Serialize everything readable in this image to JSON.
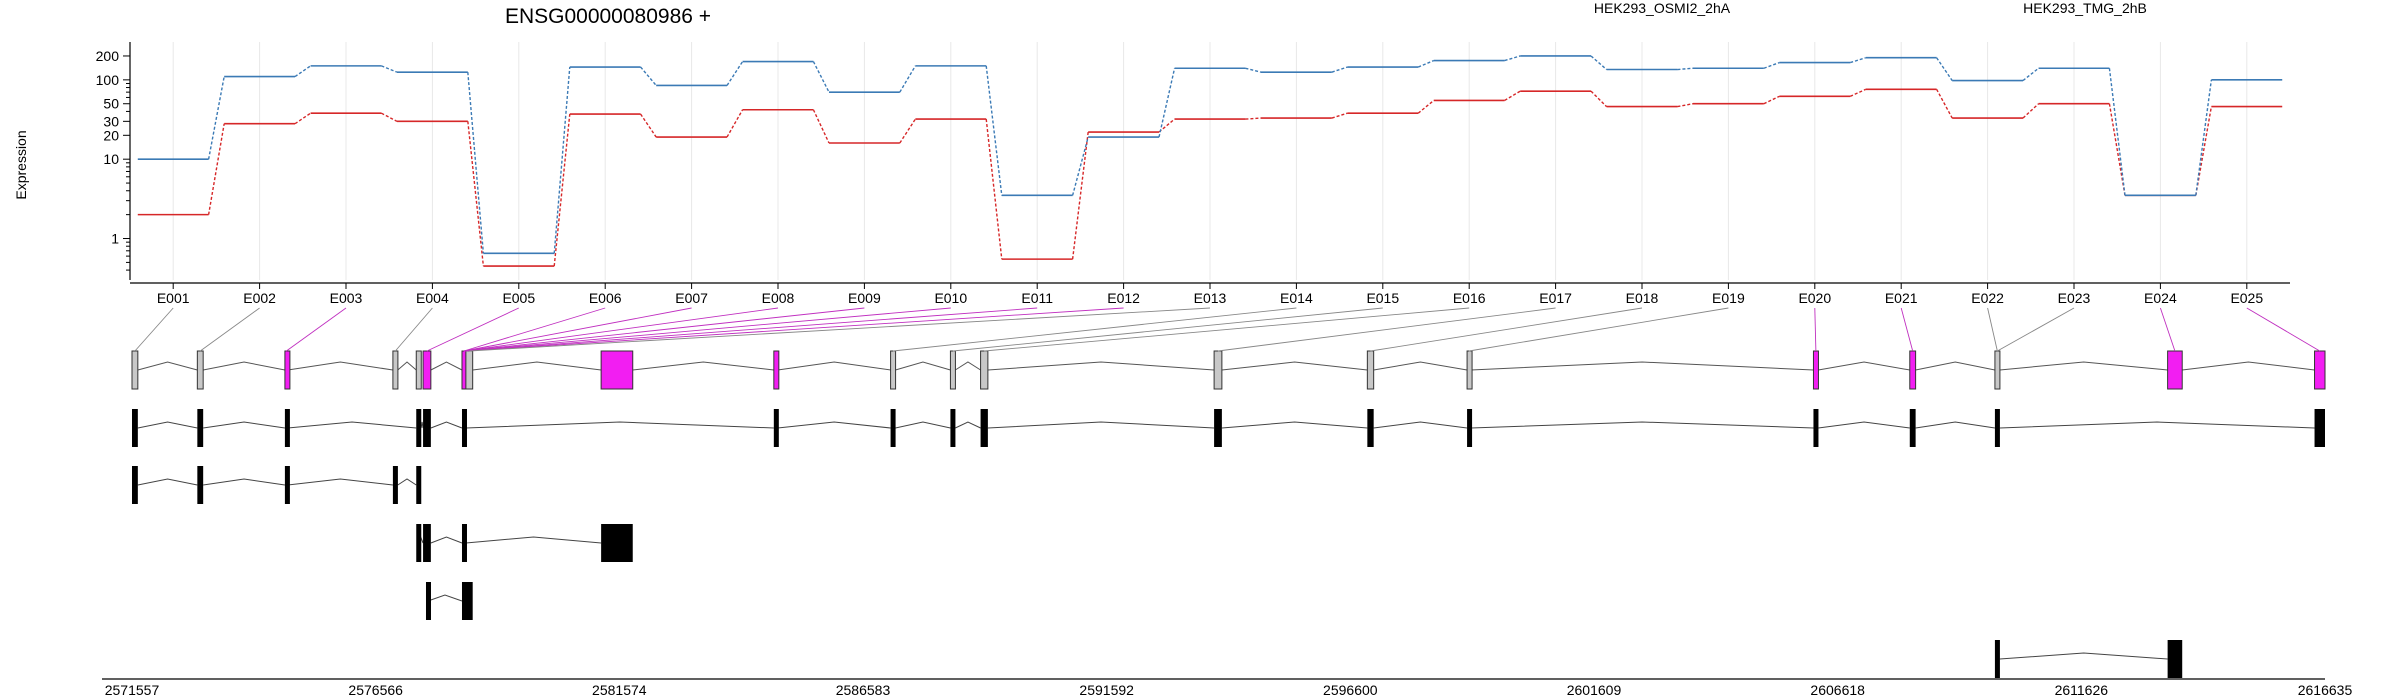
{
  "chart_data": {
    "type": "line",
    "title": "ENSG00000080986 +",
    "ylabel": "Expression",
    "xlabel": "",
    "yscale": "log",
    "ylim": [
      0.3,
      300
    ],
    "y_ticks": [
      1,
      10,
      20,
      30,
      50,
      100,
      200
    ],
    "grid": "vertical",
    "legend_position": "top",
    "categories": [
      "E001",
      "E002",
      "E003",
      "E004",
      "E005",
      "E006",
      "E007",
      "E008",
      "E009",
      "E010",
      "E011",
      "E012",
      "E013",
      "E014",
      "E015",
      "E016",
      "E017",
      "E018",
      "E019",
      "E020",
      "E021",
      "E022",
      "E023",
      "E024",
      "E025"
    ],
    "series": [
      {
        "name": "HEK293_OSMI2_2hA",
        "color": "#d62728",
        "values": [
          2,
          28,
          38,
          30,
          0.45,
          37,
          19,
          42,
          16,
          32,
          0.55,
          22,
          32,
          33,
          38,
          55,
          72,
          46,
          50,
          62,
          76,
          33,
          50,
          3.5,
          46
        ]
      },
      {
        "name": "HEK293_TMG_2hB",
        "color": "#3b7ab5",
        "values": [
          10,
          110,
          150,
          125,
          0.65,
          145,
          85,
          170,
          70,
          150,
          3.5,
          19,
          140,
          125,
          145,
          175,
          200,
          135,
          140,
          165,
          190,
          98,
          140,
          3.5,
          100
        ]
      }
    ],
    "genome_ticks": [
      "2571557",
      "2576566",
      "2581574",
      "2586583",
      "2591592",
      "2596600",
      "2601609",
      "2606618",
      "2611626",
      "2616635"
    ],
    "genome_range": [
      2571557,
      2616635
    ],
    "highlight_color": "#f21ef2",
    "exon_fill_color": "#c8c8c8",
    "transcript_color": "#000000",
    "exons": [
      {
        "start": 2571557,
        "end": 2571677,
        "highlight": false
      },
      {
        "start": 2572900,
        "end": 2573020,
        "highlight": false
      },
      {
        "start": 2574700,
        "end": 2574760,
        "highlight": true
      },
      {
        "start": 2576920,
        "end": 2577020,
        "highlight": false
      },
      {
        "start": 2577400,
        "end": 2577500,
        "highlight": false
      },
      {
        "start": 2577540,
        "end": 2577700,
        "highlight": true
      },
      {
        "start": 2578340,
        "end": 2578420,
        "highlight": true
      },
      {
        "start": 2578420,
        "end": 2578560,
        "highlight": false
      },
      {
        "start": 2581200,
        "end": 2581850,
        "highlight": true
      },
      {
        "start": 2584750,
        "end": 2584830,
        "highlight": true
      },
      {
        "start": 2587150,
        "end": 2587250,
        "highlight": false
      },
      {
        "start": 2588380,
        "end": 2588480,
        "highlight": false
      },
      {
        "start": 2589000,
        "end": 2589150,
        "highlight": false
      },
      {
        "start": 2593800,
        "end": 2593960,
        "highlight": false
      },
      {
        "start": 2596950,
        "end": 2597080,
        "highlight": false
      },
      {
        "start": 2599000,
        "end": 2599080,
        "highlight": false
      },
      {
        "start": 2606120,
        "end": 2606220,
        "highlight": true
      },
      {
        "start": 2608100,
        "end": 2608220,
        "highlight": true
      },
      {
        "start": 2609850,
        "end": 2609950,
        "highlight": false
      },
      {
        "start": 2613400,
        "end": 2613700,
        "highlight": true
      },
      {
        "start": 2616420,
        "end": 2616635,
        "highlight": true
      }
    ],
    "exon_bin_links": [
      0,
      1,
      2,
      3,
      5,
      6,
      6,
      6,
      6,
      6,
      6,
      6,
      7,
      10,
      11,
      12,
      13,
      14,
      15,
      16,
      17,
      18,
      18,
      19,
      20
    ],
    "transcripts": [
      {
        "exons": [
          [
            2571557,
            2571677
          ],
          [
            2572900,
            2573020
          ],
          [
            2574700,
            2574760
          ],
          [
            2577400,
            2577500
          ],
          [
            2577540,
            2577700
          ],
          [
            2578340,
            2578420
          ],
          [
            2584750,
            2584830
          ],
          [
            2587150,
            2587250
          ],
          [
            2588380,
            2588480
          ],
          [
            2589000,
            2589150
          ],
          [
            2593800,
            2593960
          ],
          [
            2596950,
            2597080
          ],
          [
            2599000,
            2599080
          ],
          [
            2606120,
            2606220
          ],
          [
            2608100,
            2608220
          ],
          [
            2609850,
            2609950
          ],
          [
            2616420,
            2616635
          ]
        ]
      },
      {
        "exons": [
          [
            2571557,
            2571677
          ],
          [
            2572900,
            2573020
          ],
          [
            2574700,
            2574760
          ],
          [
            2576920,
            2577020
          ],
          [
            2577400,
            2577500
          ]
        ]
      },
      {
        "exons": [
          [
            2577400,
            2577440
          ],
          [
            2577540,
            2577700
          ],
          [
            2578340,
            2578420
          ],
          [
            2581200,
            2581850
          ]
        ]
      },
      {
        "exons": [
          [
            2577600,
            2577640
          ],
          [
            2578340,
            2578560
          ]
        ]
      },
      {
        "exons": [
          [
            2609850,
            2609950
          ],
          [
            2613400,
            2613700
          ]
        ]
      }
    ]
  }
}
